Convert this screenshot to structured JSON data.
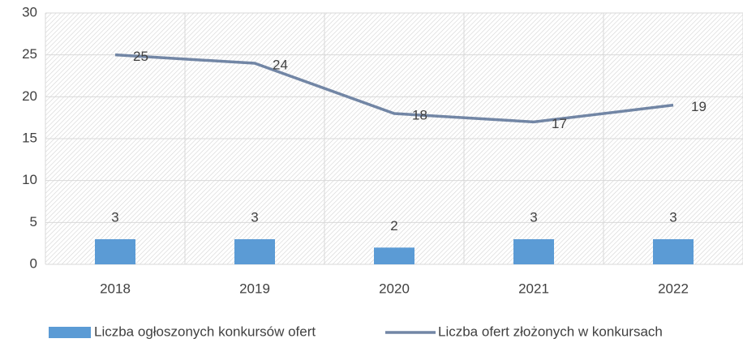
{
  "chart_data": {
    "type": "combo",
    "categories": [
      "2018",
      "2019",
      "2020",
      "2021",
      "2022"
    ],
    "series": [
      {
        "name": "Liczba ogłoszonych konkursów ofert",
        "type": "bar",
        "color": "#5b9bd5",
        "values": [
          3,
          3,
          2,
          3,
          3
        ]
      },
      {
        "name": "Liczba ofert złożonych w konkursach",
        "type": "line",
        "color": "#7286a5",
        "values": [
          25,
          24,
          18,
          17,
          19
        ]
      }
    ],
    "ylim": [
      0,
      30
    ],
    "yticks": [
      0,
      5,
      10,
      15,
      20,
      25,
      30
    ],
    "grid": true,
    "legend": "bottom"
  }
}
